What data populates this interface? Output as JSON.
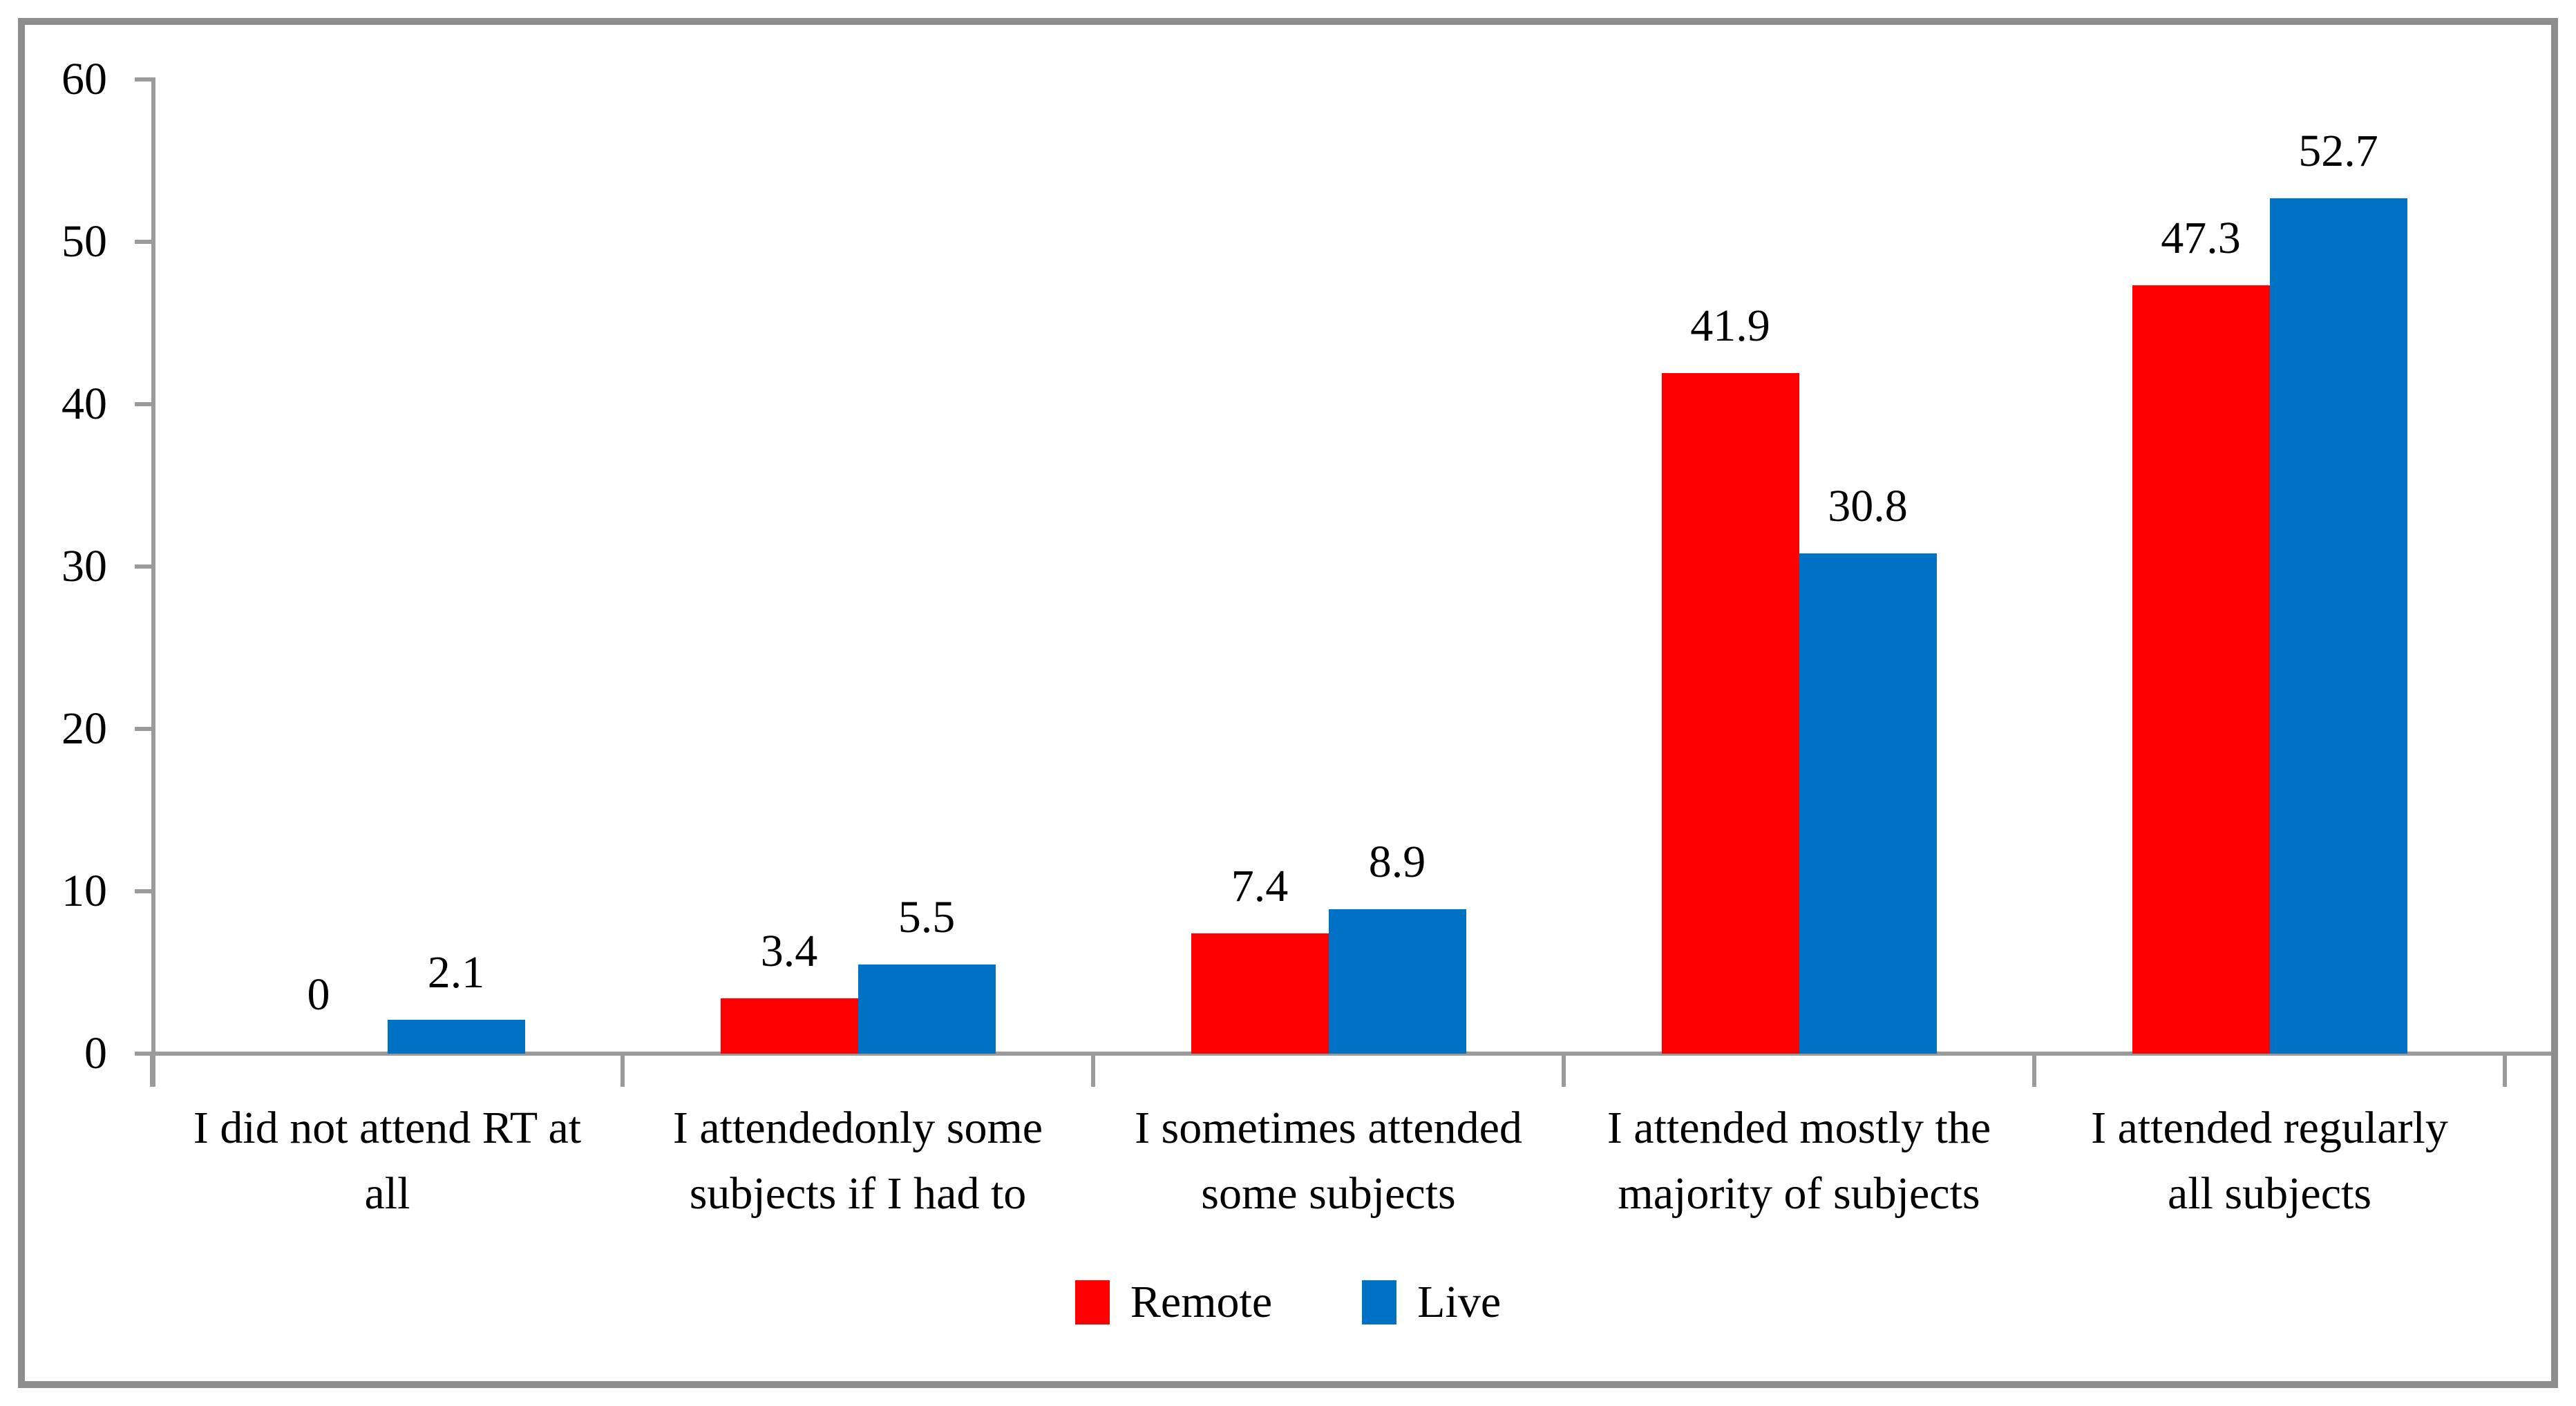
{
  "chart_data": {
    "type": "bar",
    "title": "",
    "xlabel": "",
    "ylabel": "",
    "categories": [
      "I did not attend RT at all",
      "I attendedonly some subjects if I had to",
      "I sometimes attended some subjects",
      "I attended mostly the majority of subjects",
      "I attended regularly all subjects"
    ],
    "category_lines": [
      [
        "I did not attend RT at",
        "all"
      ],
      [
        "I attendedonly some",
        "subjects if I had to"
      ],
      [
        "I sometimes attended",
        "some subjects"
      ],
      [
        "I attended mostly the",
        "majority of subjects"
      ],
      [
        "I attended regularly",
        "all subjects"
      ]
    ],
    "series": [
      {
        "name": "Remote",
        "color": "#ff0000",
        "values": [
          0,
          3.4,
          7.4,
          41.9,
          47.3
        ],
        "labels": [
          "0",
          "3.4",
          "7.4",
          "41.9",
          "47.3"
        ]
      },
      {
        "name": "Live",
        "color": "#0072c6",
        "values": [
          2.1,
          5.5,
          8.9,
          30.8,
          52.7
        ],
        "labels": [
          "2.1",
          "5.5",
          "8.9",
          "30.8",
          "52.7"
        ]
      }
    ],
    "ylim": [
      0,
      60
    ],
    "ytick_step": 10,
    "yticks": [
      "0",
      "10",
      "20",
      "30",
      "40",
      "50",
      "60"
    ],
    "grid": "off",
    "legend_position": "bottom"
  },
  "legend": {
    "items": [
      {
        "label": "Remote",
        "color": "#ff0000"
      },
      {
        "label": "Live",
        "color": "#0072c6"
      }
    ]
  },
  "colors": {
    "remote": "#ff0000",
    "live": "#0072c6",
    "axis": "#9a9a9a",
    "frame": "#8d8d8d",
    "text": "#000000",
    "background": "#ffffff"
  }
}
